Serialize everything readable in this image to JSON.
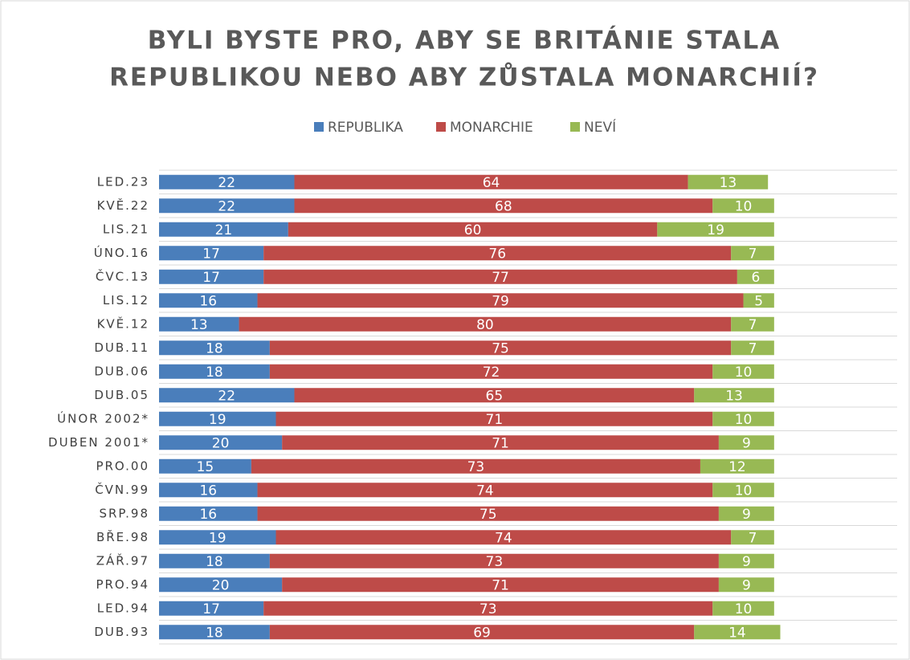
{
  "chart_data": {
    "type": "stacked-bar-horizontal",
    "title": [
      "BYLI BYSTE PRO, ABY SE BRITÁNIE STALA",
      "REPUBLIKOU NEBO ABY ZŮSTALA  MONARCHIÍ?"
    ],
    "categories": [
      "LED.23",
      "KVĚ.22",
      "LIS.21",
      "ÚNO.16",
      "ČVC.13",
      "LIS.12",
      "KVĚ.12",
      "DUB.11",
      "DUB.06",
      "DUB.05",
      "ÚNOR 2002*",
      "DUBEN 2001*",
      "PRO.00",
      "ČVN.99",
      "SRP.98",
      "BŘE.98",
      "ZÁŘ.97",
      "PRO.94",
      "LED.94",
      "DUB.93"
    ],
    "series": [
      {
        "name": "REPUBLIKA",
        "color": "#4a7ebb",
        "values": [
          22,
          22,
          21,
          17,
          17,
          16,
          13,
          18,
          18,
          22,
          19,
          20,
          15,
          16,
          16,
          19,
          18,
          20,
          17,
          18
        ]
      },
      {
        "name": "MONARCHIE",
        "color": "#be4b48",
        "values": [
          64,
          68,
          60,
          76,
          77,
          79,
          80,
          75,
          72,
          65,
          71,
          71,
          73,
          74,
          75,
          74,
          73,
          71,
          73,
          69
        ]
      },
      {
        "name": "NEVÍ",
        "color": "#98b954",
        "values": [
          13,
          10,
          19,
          7,
          6,
          5,
          7,
          7,
          10,
          13,
          10,
          9,
          12,
          10,
          9,
          7,
          9,
          9,
          10,
          14
        ]
      }
    ],
    "xlim": [
      0,
      120
    ],
    "legend": "top"
  }
}
